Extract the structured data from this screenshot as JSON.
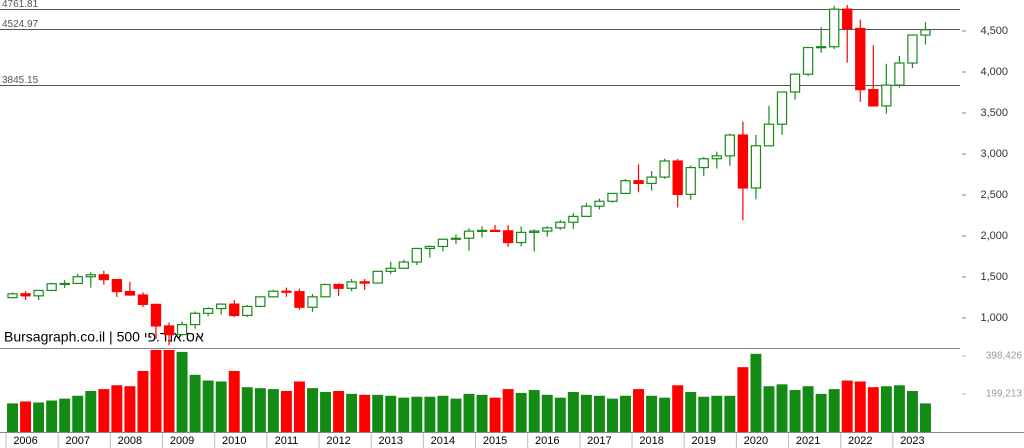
{
  "chart_data": {
    "type": "candlestick",
    "title": "Bursagraph.co.il | אס.אנד.פי 500",
    "up_color": "#1a8a1a",
    "down_color": "#ff0000",
    "xlim": [
      2006,
      2023.75
    ],
    "xticks": [
      2006,
      2007,
      2008,
      2009,
      2010,
      2011,
      2012,
      2013,
      2014,
      2015,
      2016,
      2017,
      2018,
      2019,
      2020,
      2021,
      2022,
      2023
    ],
    "ylim": [
      634,
      4841
    ],
    "yticks": [
      {
        "value": 1000,
        "label": "1,000"
      },
      {
        "value": 1500,
        "label": "1,500"
      },
      {
        "value": 2000,
        "label": "2,000"
      },
      {
        "value": 2500,
        "label": "2,500"
      },
      {
        "value": 3000,
        "label": "3,000"
      },
      {
        "value": 3500,
        "label": "3,500"
      },
      {
        "value": 4000,
        "label": "4,000"
      },
      {
        "value": 4500,
        "label": "4,500"
      }
    ],
    "reference_lines": [
      4761.81,
      4524.97,
      3845.15
    ],
    "open": [
      1248,
      1295,
      1270,
      1336,
      1418,
      1421,
      1503,
      1527,
      1468,
      1322,
      1280,
      1166,
      903,
      798,
      919,
      1057,
      1115,
      1169,
      1031,
      1141,
      1258,
      1326,
      1321,
      1131,
      1258,
      1408,
      1362,
      1441,
      1426,
      1569,
      1606,
      1682,
      1848,
      1872,
      1960,
      1972,
      2059,
      2068,
      2063,
      1920,
      2044,
      2060,
      2099,
      2168,
      2239,
      2363,
      2423,
      2519,
      2674,
      2641,
      2718,
      2914,
      2507,
      2834,
      2942,
      2977,
      3231,
      2585,
      3100,
      3363,
      3756,
      3973,
      4298,
      4308,
      4766,
      4530,
      3785,
      3586,
      3840,
      4109,
      4450
    ],
    "high": [
      1310,
      1326,
      1340,
      1431,
      1461,
      1540,
      1556,
      1576,
      1472,
      1440,
      1313,
      1167,
      944,
      956,
      1080,
      1130,
      1180,
      1219,
      1157,
      1263,
      1344,
      1371,
      1357,
      1293,
      1419,
      1422,
      1475,
      1475,
      1570,
      1687,
      1710,
      1849,
      1884,
      1968,
      2019,
      2093,
      2119,
      2135,
      2132,
      2116,
      2082,
      2120,
      2194,
      2278,
      2401,
      2454,
      2519,
      2694,
      2873,
      2791,
      2941,
      2940,
      2860,
      2964,
      3028,
      3248,
      3394,
      3233,
      3588,
      3760,
      3983,
      4302,
      4546,
      4808,
      4818,
      4637,
      4325,
      4100,
      4195,
      4458,
      4607
    ],
    "low": [
      1245,
      1220,
      1219,
      1327,
      1364,
      1416,
      1370,
      1406,
      1256,
      1272,
      1133,
      741,
      667,
      784,
      869,
      1020,
      1044,
      1011,
      1011,
      1131,
      1249,
      1258,
      1101,
      1075,
      1258,
      1267,
      1325,
      1343,
      1426,
      1536,
      1604,
      1646,
      1737,
      1814,
      1904,
      1821,
      1981,
      2048,
      1867,
      1872,
      1810,
      1991,
      2074,
      2084,
      2245,
      2322,
      2406,
      2520,
      2533,
      2553,
      2698,
      2347,
      2444,
      2729,
      2823,
      2856,
      2192,
      2447,
      3101,
      3234,
      3662,
      3950,
      4233,
      4279,
      4115,
      3637,
      3584,
      3492,
      3809,
      4049,
      4335
    ],
    "close": [
      1295,
      1270,
      1336,
      1418,
      1421,
      1503,
      1527,
      1468,
      1322,
      1280,
      1166,
      903,
      798,
      919,
      1057,
      1115,
      1169,
      1031,
      1141,
      1258,
      1326,
      1321,
      1131,
      1258,
      1408,
      1362,
      1441,
      1426,
      1569,
      1606,
      1682,
      1848,
      1872,
      1960,
      1972,
      2059,
      2068,
      2063,
      1920,
      2044,
      2060,
      2099,
      2168,
      2239,
      2363,
      2423,
      2519,
      2674,
      2641,
      2718,
      2914,
      2507,
      2834,
      2942,
      2977,
      3231,
      2585,
      3100,
      3363,
      3756,
      3973,
      4298,
      4308,
      4766,
      4530,
      3785,
      3586,
      3840,
      4109,
      4450,
      4515
    ],
    "volume": [
      150000,
      160000,
      155000,
      165000,
      175000,
      190000,
      215000,
      225000,
      245000,
      240000,
      320000,
      430000,
      430000,
      420000,
      300000,
      270000,
      265000,
      320000,
      235000,
      230000,
      225000,
      215000,
      265000,
      230000,
      210000,
      215000,
      200000,
      195000,
      195000,
      190000,
      180000,
      185000,
      185000,
      190000,
      175000,
      200000,
      195000,
      180000,
      225000,
      205000,
      220000,
      195000,
      180000,
      210000,
      195000,
      190000,
      175000,
      190000,
      225000,
      190000,
      180000,
      245000,
      210000,
      185000,
      190000,
      190000,
      340000,
      410000,
      240000,
      250000,
      220000,
      240000,
      200000,
      225000,
      270000,
      265000,
      235000,
      240000,
      245000,
      215000,
      150000
    ],
    "volume_ylim": [
      0,
      430000
    ],
    "volume_yticks": [
      {
        "value": 199213,
        "label": "199,213"
      },
      {
        "value": 398426,
        "label": "398,426"
      }
    ]
  }
}
